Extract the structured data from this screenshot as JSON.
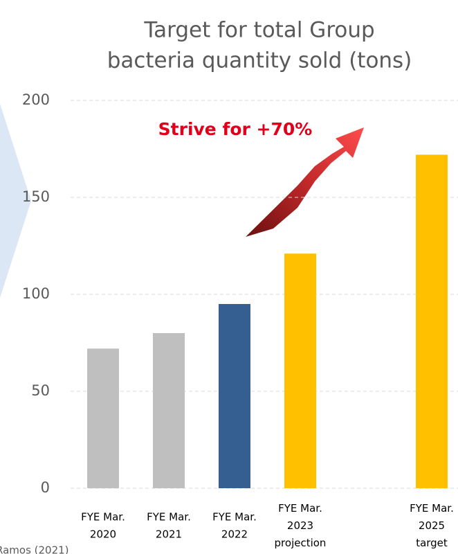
{
  "chart_data": {
    "type": "bar",
    "title": [
      "Target for total Group",
      "bacteria quantity sold (tons)"
    ],
    "annotation": "Strive for +70%",
    "footnote": "Ramos (2021)",
    "categories": [
      [
        "FYE Mar.",
        "2020"
      ],
      [
        "FYE Mar.",
        "2021"
      ],
      [
        "FYE Mar.",
        "2022"
      ],
      [
        "FYE Mar.",
        "2023",
        "projection"
      ],
      null,
      [
        "FYE Mar.",
        "2025",
        "target"
      ]
    ],
    "values": [
      72,
      80,
      95,
      121,
      null,
      172
    ],
    "colors": [
      "#bfbfbf",
      "#bfbfbf",
      "#355e91",
      "#ffc000",
      null,
      "#ffc000"
    ],
    "ylim": [
      0,
      200
    ],
    "yticks": [
      0,
      50,
      100,
      150,
      200
    ],
    "grid": true
  }
}
